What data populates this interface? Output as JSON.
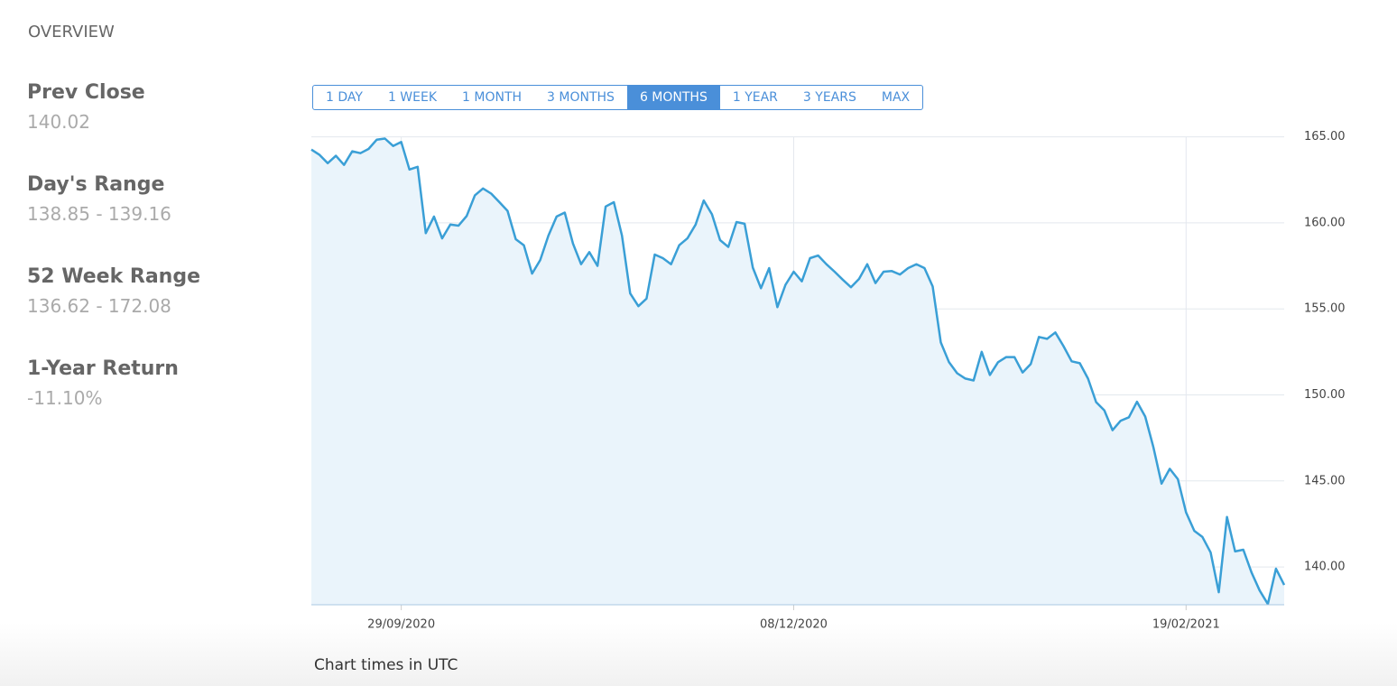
{
  "overview": {
    "title": "OVERVIEW",
    "stats": [
      {
        "label": "Prev Close",
        "value": "140.02"
      },
      {
        "label": "Day's Range",
        "value": "138.85 - 139.16"
      },
      {
        "label": "52 Week Range",
        "value": "136.62 - 172.08"
      },
      {
        "label": "1-Year Return",
        "value": "-11.10%"
      }
    ]
  },
  "range_buttons": {
    "options": [
      "1 DAY",
      "1 WEEK",
      "1 MONTH",
      "3 MONTHS",
      "6 MONTHS",
      "1 YEAR",
      "3 YEARS",
      "MAX"
    ],
    "active": 4
  },
  "chart_data": {
    "type": "line",
    "color": "#3a9fd6",
    "fill": "#eaf4fb",
    "grid": true,
    "categories": [
      null,
      null,
      null,
      null,
      null,
      null,
      null,
      null,
      null,
      null,
      null,
      "29/09/2020",
      null,
      null,
      null,
      null,
      null,
      null,
      null,
      null,
      null,
      null,
      null,
      null,
      null,
      null,
      null,
      null,
      null,
      null,
      null,
      null,
      null,
      null,
      null,
      null,
      null,
      null,
      null,
      null,
      null,
      null,
      null,
      null,
      null,
      null,
      null,
      null,
      null,
      null,
      null,
      null,
      null,
      null,
      null,
      null,
      null,
      null,
      null,
      "08/12/2020",
      null,
      null,
      null,
      null,
      null,
      null,
      null,
      null,
      null,
      null,
      null,
      null,
      null,
      null,
      null,
      null,
      null,
      null,
      null,
      null,
      null,
      null,
      null,
      null,
      null,
      null,
      null,
      null,
      null,
      null,
      null,
      null,
      null,
      null,
      null,
      null,
      null,
      null,
      null,
      null,
      null,
      null,
      null,
      null,
      null,
      null,
      null,
      "19/02/2021",
      null,
      null,
      null,
      null,
      null,
      null,
      null,
      null,
      null,
      null,
      null,
      null
    ],
    "values": [
      164.26,
      163.95,
      163.47,
      163.9,
      163.37,
      164.16,
      164.05,
      164.3,
      164.84,
      164.9,
      164.47,
      164.7,
      163.1,
      163.26,
      159.4,
      160.37,
      159.1,
      159.9,
      159.84,
      160.4,
      161.6,
      162,
      161.7,
      161.2,
      160.7,
      159.05,
      158.7,
      157.05,
      157.84,
      159.26,
      160.37,
      160.6,
      158.8,
      157.6,
      158.3,
      157.5,
      160.95,
      161.2,
      159.26,
      155.9,
      155.16,
      155.6,
      158.16,
      157.95,
      157.6,
      158.7,
      159.1,
      159.9,
      161.3,
      160.5,
      159,
      158.6,
      160.05,
      159.95,
      157.4,
      156.2,
      157.37,
      155.1,
      156.4,
      157.16,
      156.6,
      157.95,
      158.1,
      157.6,
      157.16,
      156.7,
      156.26,
      156.74,
      157.6,
      156.5,
      157.16,
      157.2,
      157,
      157.37,
      157.6,
      157.37,
      156.3,
      153.05,
      151.9,
      151.26,
      150.95,
      150.84,
      152.5,
      151.16,
      151.9,
      152.2,
      152.2,
      151.3,
      151.8,
      153.37,
      153.26,
      153.63,
      152.84,
      151.95,
      151.84,
      150.95,
      149.58,
      149.1,
      147.95,
      148.5,
      148.7,
      149.6,
      148.74,
      146.95,
      144.84,
      145.7,
      145.1,
      143.16,
      142.1,
      141.74,
      140.84,
      138.53,
      142.9,
      140.9,
      141,
      139.68,
      138.63,
      137.84,
      139.9,
      138.95
    ],
    "ylim": [
      137.8,
      165.4
    ],
    "yticks": [
      {
        "value": 140,
        "label": "140.00"
      },
      {
        "value": 145,
        "label": "145.00"
      },
      {
        "value": 150,
        "label": "150.00"
      },
      {
        "value": 155,
        "label": "155.00"
      },
      {
        "value": 160,
        "label": "160.00"
      },
      {
        "value": 165,
        "label": "165.00"
      }
    ],
    "note": "Chart times in UTC"
  }
}
